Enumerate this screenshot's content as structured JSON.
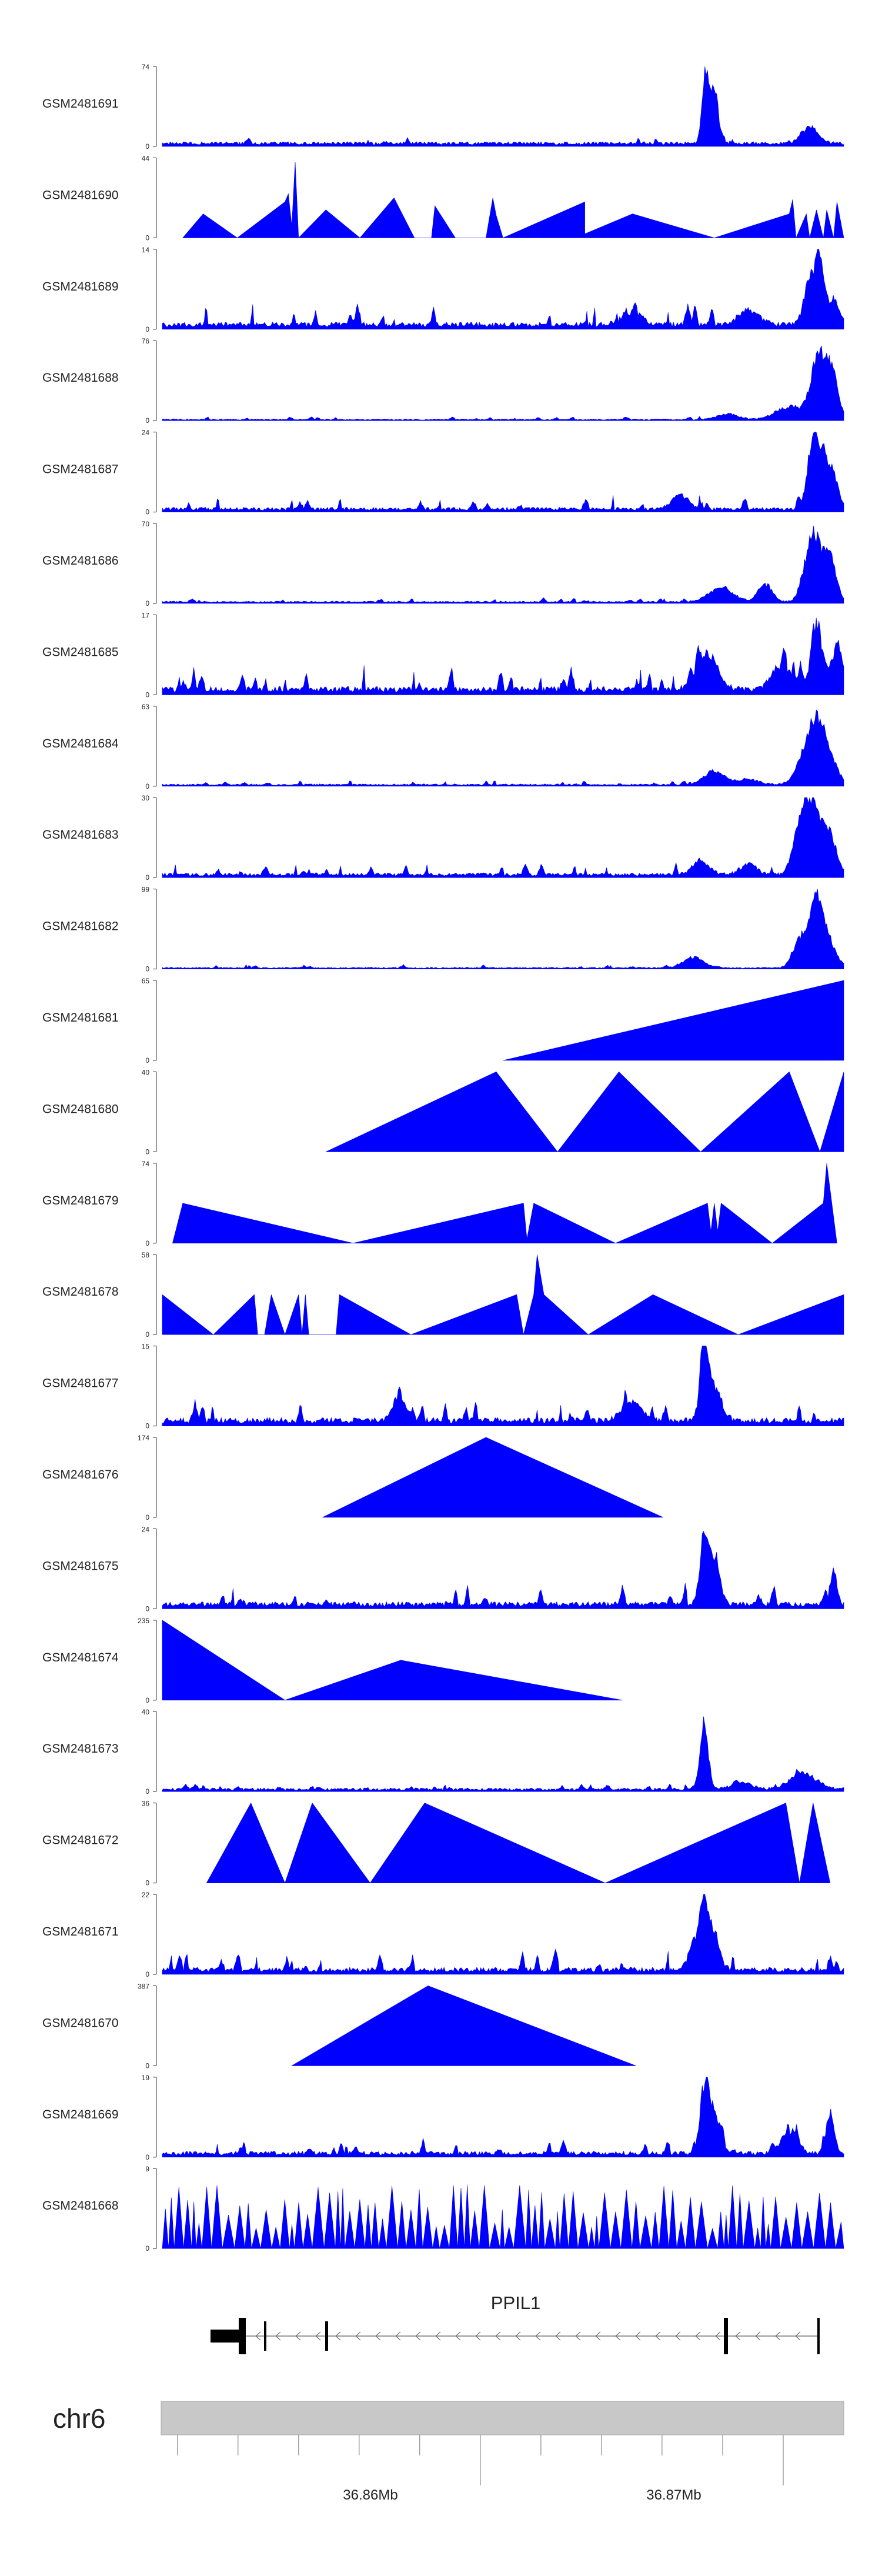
{
  "page": {
    "background": "#ffffff"
  },
  "colors": {
    "signal": "#0000ff",
    "axis": "#555555",
    "gene": "#000000",
    "chromosome_bar": "#c8c8c8"
  },
  "chart_data": {
    "type": "area",
    "title": "",
    "x_range_kb": [
      36849.5,
      36872.0
    ],
    "series": [
      {
        "name": "GSM2481691",
        "ymax": "74",
        "pattern": "dense",
        "baseline": 4,
        "noise": 6,
        "peaks": [
          [
            0.797,
            0.95,
            0.5
          ],
          [
            0.81,
            0.72,
            0.6
          ],
          [
            0.95,
            0.24,
            1.2
          ]
        ]
      },
      {
        "name": "GSM2481690",
        "ymax": "44",
        "pattern": "sparse",
        "points": [
          [
            0.03,
            0
          ],
          [
            0.06,
            0.3
          ],
          [
            0.11,
            0
          ],
          [
            0.18,
            0.45
          ],
          [
            0.185,
            0.55
          ],
          [
            0.19,
            0.15
          ],
          [
            0.195,
            0.95
          ],
          [
            0.2,
            0
          ],
          [
            0.24,
            0.35
          ],
          [
            0.29,
            0
          ],
          [
            0.34,
            0.5
          ],
          [
            0.37,
            0
          ],
          [
            0.395,
            0
          ],
          [
            0.4,
            0.4
          ],
          [
            0.43,
            0
          ],
          [
            0.44,
            0
          ],
          [
            0.46,
            0
          ],
          [
            0.475,
            0
          ],
          [
            0.485,
            0.5
          ],
          [
            0.49,
            0.28
          ],
          [
            0.5,
            0
          ],
          [
            0.62,
            0.45
          ],
          [
            0.62,
            0.05
          ],
          [
            0.69,
            0.3
          ],
          [
            0.81,
            0
          ],
          [
            0.92,
            0.3
          ],
          [
            0.925,
            0.48
          ],
          [
            0.93,
            0
          ],
          [
            0.945,
            0.3
          ],
          [
            0.95,
            0
          ],
          [
            0.96,
            0.35
          ],
          [
            0.97,
            0
          ],
          [
            0.975,
            0.35
          ],
          [
            0.985,
            0
          ],
          [
            0.99,
            0.45
          ],
          [
            1.0,
            0
          ]
        ]
      },
      {
        "name": "GSM2481689",
        "ymax": "14",
        "pattern": "dense",
        "baseline": 6,
        "noise": 22,
        "peaks": [
          [
            0.95,
            0.65,
            0.8
          ],
          [
            0.965,
            0.95,
            0.6
          ],
          [
            0.985,
            0.35,
            0.8
          ],
          [
            0.86,
            0.2,
            1.5
          ],
          [
            0.69,
            0.15,
            1.5
          ]
        ]
      },
      {
        "name": "GSM2481688",
        "ymax": "76",
        "pattern": "dense",
        "baseline": 1.5,
        "noise": 3,
        "peaks": [
          [
            0.965,
            0.95,
            1.2
          ],
          [
            0.92,
            0.18,
            2.0
          ],
          [
            0.83,
            0.08,
            1.5
          ],
          [
            0.985,
            0.5,
            0.8
          ]
        ]
      },
      {
        "name": "GSM2481687",
        "ymax": "24",
        "pattern": "dense",
        "baseline": 4,
        "noise": 14,
        "peaks": [
          [
            0.955,
            0.95,
            0.8
          ],
          [
            0.97,
            0.55,
            0.8
          ],
          [
            0.985,
            0.45,
            0.8
          ],
          [
            0.76,
            0.2,
            1.2
          ]
        ]
      },
      {
        "name": "GSM2481686",
        "ymax": "70",
        "pattern": "dense",
        "baseline": 2,
        "noise": 4,
        "peaks": [
          [
            0.955,
            0.98,
            1.2
          ],
          [
            0.98,
            0.6,
            0.9
          ],
          [
            0.82,
            0.2,
            1.8
          ],
          [
            0.885,
            0.25,
            1.0
          ]
        ]
      },
      {
        "name": "GSM2481685",
        "ymax": "17",
        "pattern": "dense",
        "baseline": 7,
        "noise": 22,
        "peaks": [
          [
            0.96,
            0.95,
            0.8
          ],
          [
            0.8,
            0.5,
            1.5
          ],
          [
            0.91,
            0.35,
            1.5
          ],
          [
            0.99,
            0.55,
            1.0
          ]
        ]
      },
      {
        "name": "GSM2481684",
        "ymax": "63",
        "pattern": "dense",
        "baseline": 2,
        "noise": 4,
        "peaks": [
          [
            0.96,
            0.98,
            1.8
          ],
          [
            0.81,
            0.2,
            1.5
          ],
          [
            0.86,
            0.08,
            1.5
          ]
        ]
      },
      {
        "name": "GSM2481683",
        "ymax": "30",
        "pattern": "dense",
        "baseline": 4,
        "noise": 12,
        "peaks": [
          [
            0.955,
            0.98,
            1.2
          ],
          [
            0.935,
            0.6,
            1.0
          ],
          [
            0.98,
            0.5,
            1.0
          ],
          [
            0.79,
            0.2,
            1.2
          ],
          [
            0.86,
            0.15,
            1.2
          ]
        ]
      },
      {
        "name": "GSM2481682",
        "ymax": "99",
        "pattern": "dense",
        "baseline": 1.5,
        "noise": 3,
        "peaks": [
          [
            0.96,
            0.98,
            1.0
          ],
          [
            0.935,
            0.4,
            1.0
          ],
          [
            0.98,
            0.3,
            1.0
          ],
          [
            0.78,
            0.15,
            1.5
          ]
        ]
      },
      {
        "name": "GSM2481681",
        "ymax": "65",
        "pattern": "sparse",
        "points": [
          [
            0.5,
            0
          ],
          [
            1.0,
            1.0
          ],
          [
            1.0,
            0
          ]
        ]
      },
      {
        "name": "GSM2481680",
        "ymax": "40",
        "pattern": "sparse",
        "points": [
          [
            0.24,
            0
          ],
          [
            0.49,
            1.0
          ],
          [
            0.58,
            0
          ],
          [
            0.67,
            1.0
          ],
          [
            0.79,
            0
          ],
          [
            0.92,
            1.0
          ],
          [
            0.965,
            0
          ],
          [
            1.0,
            1.0
          ],
          [
            1.0,
            0
          ]
        ]
      },
      {
        "name": "GSM2481679",
        "ymax": "74",
        "pattern": "sparse",
        "points": [
          [
            0.015,
            0
          ],
          [
            0.03,
            0.5
          ],
          [
            0.28,
            0
          ],
          [
            0.53,
            0.5
          ],
          [
            0.535,
            0.05
          ],
          [
            0.545,
            0.5
          ],
          [
            0.665,
            0
          ],
          [
            0.8,
            0.5
          ],
          [
            0.805,
            0.15
          ],
          [
            0.81,
            0.5
          ],
          [
            0.815,
            0.15
          ],
          [
            0.82,
            0.5
          ],
          [
            0.895,
            0
          ],
          [
            0.97,
            0.5
          ],
          [
            0.975,
            1.0
          ],
          [
            0.99,
            0
          ]
        ]
      },
      {
        "name": "GSM2481678",
        "ymax": "58",
        "pattern": "sparse",
        "points": [
          [
            0.0,
            0
          ],
          [
            0.0,
            0.5
          ],
          [
            0.075,
            0
          ],
          [
            0.135,
            0.5
          ],
          [
            0.14,
            0
          ],
          [
            0.15,
            0
          ],
          [
            0.16,
            0.5
          ],
          [
            0.18,
            0
          ],
          [
            0.2,
            0.5
          ],
          [
            0.205,
            0
          ],
          [
            0.21,
            0.5
          ],
          [
            0.215,
            0
          ],
          [
            0.255,
            0
          ],
          [
            0.26,
            0.5
          ],
          [
            0.365,
            0
          ],
          [
            0.52,
            0.5
          ],
          [
            0.53,
            0
          ],
          [
            0.545,
            0.5
          ],
          [
            0.55,
            1.0
          ],
          [
            0.56,
            0.5
          ],
          [
            0.625,
            0
          ],
          [
            0.72,
            0.5
          ],
          [
            0.845,
            0
          ],
          [
            1.0,
            0.5
          ],
          [
            1.0,
            0
          ]
        ]
      },
      {
        "name": "GSM2481677",
        "ymax": "15",
        "pattern": "dense",
        "baseline": 7,
        "noise": 20,
        "peaks": [
          [
            0.795,
            0.95,
            0.6
          ],
          [
            0.81,
            0.5,
            1.0
          ],
          [
            0.35,
            0.3,
            1.0
          ],
          [
            0.69,
            0.25,
            1.5
          ]
        ]
      },
      {
        "name": "GSM2481676",
        "ymax": "174",
        "pattern": "sparse",
        "points": [
          [
            0.235,
            0
          ],
          [
            0.475,
            1.0
          ],
          [
            0.735,
            0
          ]
        ]
      },
      {
        "name": "GSM2481675",
        "ymax": "24",
        "pattern": "dense",
        "baseline": 6,
        "noise": 20,
        "peaks": [
          [
            0.795,
            0.95,
            0.6
          ],
          [
            0.81,
            0.6,
            0.8
          ],
          [
            0.985,
            0.45,
            0.5
          ]
        ]
      },
      {
        "name": "GSM2481674",
        "ymax": "235",
        "pattern": "sparse",
        "points": [
          [
            0.0,
            0
          ],
          [
            0.0,
            1.0
          ],
          [
            0.18,
            0
          ],
          [
            0.35,
            0.5
          ],
          [
            0.675,
            0
          ]
        ]
      },
      {
        "name": "GSM2481673",
        "ymax": "40",
        "pattern": "dense",
        "baseline": 3,
        "noise": 5,
        "peaks": [
          [
            0.795,
            0.98,
            0.6
          ],
          [
            0.85,
            0.1,
            1.5
          ],
          [
            0.94,
            0.22,
            2.0
          ]
        ]
      },
      {
        "name": "GSM2481672",
        "ymax": "36",
        "pattern": "sparse",
        "points": [
          [
            0.065,
            0
          ],
          [
            0.13,
            1.0
          ],
          [
            0.18,
            0
          ],
          [
            0.22,
            1.0
          ],
          [
            0.305,
            0
          ],
          [
            0.385,
            1.0
          ],
          [
            0.65,
            0
          ],
          [
            0.915,
            1.0
          ],
          [
            0.935,
            0
          ],
          [
            0.955,
            1.0
          ],
          [
            0.98,
            0
          ]
        ]
      },
      {
        "name": "GSM2481671",
        "ymax": "22",
        "pattern": "dense",
        "baseline": 6,
        "noise": 22,
        "peaks": [
          [
            0.795,
            0.95,
            0.6
          ],
          [
            0.78,
            0.4,
            0.8
          ],
          [
            0.81,
            0.5,
            0.8
          ]
        ]
      },
      {
        "name": "GSM2481670",
        "ymax": "387",
        "pattern": "sparse",
        "points": [
          [
            0.19,
            0
          ],
          [
            0.39,
            1.0
          ],
          [
            0.695,
            0
          ]
        ]
      },
      {
        "name": "GSM2481669",
        "ymax": "19",
        "pattern": "dense",
        "baseline": 5,
        "noise": 14,
        "peaks": [
          [
            0.795,
            0.95,
            0.6
          ],
          [
            0.81,
            0.6,
            0.8
          ],
          [
            0.98,
            0.55,
            0.6
          ],
          [
            0.92,
            0.3,
            1.2
          ]
        ]
      },
      {
        "name": "GSM2481668",
        "ymax": "9",
        "pattern": "spiky",
        "seed": 68
      }
    ],
    "gene_track": {
      "gene": "PPIL1",
      "strand": "-"
    },
    "axis": {
      "chromosome": "chr6",
      "tick_labels": [
        "36.86Mb",
        "36.87Mb"
      ],
      "tick_values_kb": [
        36860,
        36870
      ],
      "minor_tick_step_kb": 2
    }
  }
}
